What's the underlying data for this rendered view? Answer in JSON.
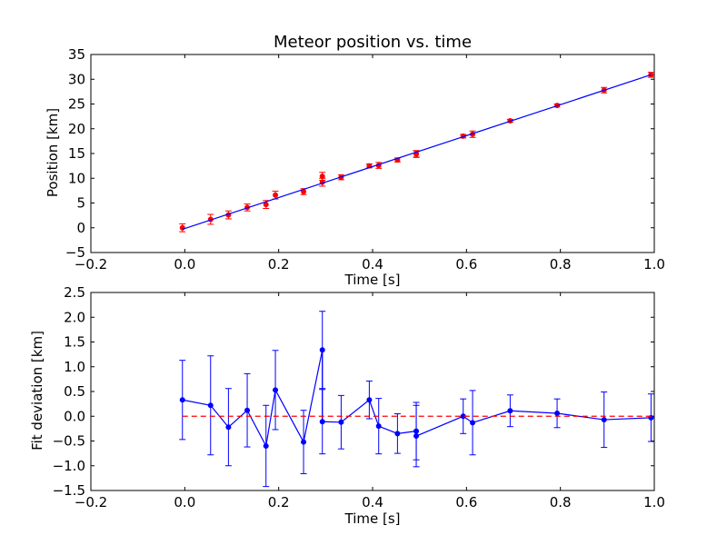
{
  "chart_data": [
    {
      "type": "scatter",
      "title": "Meteor position vs. time",
      "xlabel": "Time [s]",
      "ylabel": "Position [km]",
      "xlim": [
        -0.2,
        1.0
      ],
      "ylim": [
        -5,
        35
      ],
      "xticks": [
        "−0.2",
        "0.0",
        "0.2",
        "0.4",
        "0.6",
        "0.8",
        "1.0"
      ],
      "xtick_values": [
        -0.2,
        0.0,
        0.2,
        0.4,
        0.6,
        0.8,
        1.0
      ],
      "yticks": [
        "−5",
        "0",
        "5",
        "10",
        "15",
        "20",
        "25",
        "30",
        "35"
      ],
      "ytick_values": [
        -5,
        0,
        5,
        10,
        15,
        20,
        25,
        30,
        35
      ],
      "grid": false,
      "series": [
        {
          "kind": "errorbar",
          "color": "#ff0000",
          "x": [
            -0.005,
            0.055,
            0.093,
            0.133,
            0.173,
            0.193,
            0.253,
            0.293,
            0.293,
            0.333,
            0.393,
            0.413,
            0.453,
            0.493,
            0.493,
            0.593,
            0.613,
            0.693,
            0.793,
            0.893,
            0.993
          ],
          "y": [
            0.0,
            1.7,
            2.6,
            4.1,
            4.7,
            6.6,
            7.3,
            9.2,
            10.4,
            10.2,
            12.5,
            12.6,
            13.7,
            14.9,
            14.9,
            18.5,
            18.9,
            21.6,
            24.7,
            27.8,
            30.9
          ],
          "err": [
            0.8,
            1.0,
            0.8,
            0.7,
            0.8,
            0.8,
            0.6,
            0.8,
            0.8,
            0.5,
            0.4,
            0.6,
            0.4,
            0.6,
            0.7,
            0.35,
            0.65,
            0.3,
            0.3,
            0.55,
            0.5
          ]
        },
        {
          "kind": "fit-line",
          "color": "#0000ff",
          "x": [
            -0.005,
            0.993
          ],
          "y": [
            -0.3,
            30.9
          ]
        }
      ]
    },
    {
      "type": "line",
      "title": "",
      "xlabel": "Time [s]",
      "ylabel": "Fit deviation [km]",
      "xlim": [
        -0.2,
        1.0
      ],
      "ylim": [
        -1.5,
        2.5
      ],
      "xticks": [
        "−0.2",
        "0.0",
        "0.2",
        "0.4",
        "0.6",
        "0.8",
        "1.0"
      ],
      "xtick_values": [
        -0.2,
        0.0,
        0.2,
        0.4,
        0.6,
        0.8,
        1.0
      ],
      "yticks": [
        "−1.5",
        "−1.0",
        "−0.5",
        "0.0",
        "0.5",
        "1.0",
        "1.5",
        "2.0",
        "2.5"
      ],
      "ytick_values": [
        -1.5,
        -1.0,
        -0.5,
        0.0,
        0.5,
        1.0,
        1.5,
        2.0,
        2.5
      ],
      "grid": false,
      "series": [
        {
          "kind": "errorbar-line",
          "color": "#0000ff",
          "x": [
            -0.005,
            0.055,
            0.093,
            0.133,
            0.173,
            0.193,
            0.253,
            0.293,
            0.293,
            0.333,
            0.393,
            0.413,
            0.453,
            0.493,
            0.493,
            0.593,
            0.613,
            0.693,
            0.793,
            0.893,
            0.993
          ],
          "y": [
            0.33,
            0.22,
            -0.22,
            0.12,
            -0.6,
            0.53,
            -0.52,
            1.34,
            -0.11,
            -0.12,
            0.33,
            -0.2,
            -0.35,
            -0.3,
            -0.4,
            0.0,
            -0.13,
            0.11,
            0.06,
            -0.07,
            -0.03
          ],
          "err": [
            0.8,
            1.0,
            0.78,
            0.74,
            0.82,
            0.8,
            0.64,
            0.78,
            0.65,
            0.54,
            0.38,
            0.56,
            0.4,
            0.58,
            0.62,
            0.35,
            0.65,
            0.32,
            0.29,
            0.56,
            0.48
          ]
        },
        {
          "kind": "reference-line",
          "color": "#ff0000",
          "dashed": true,
          "x": [
            -0.005,
            0.993
          ],
          "y": [
            0.0,
            0.0
          ]
        }
      ]
    }
  ]
}
